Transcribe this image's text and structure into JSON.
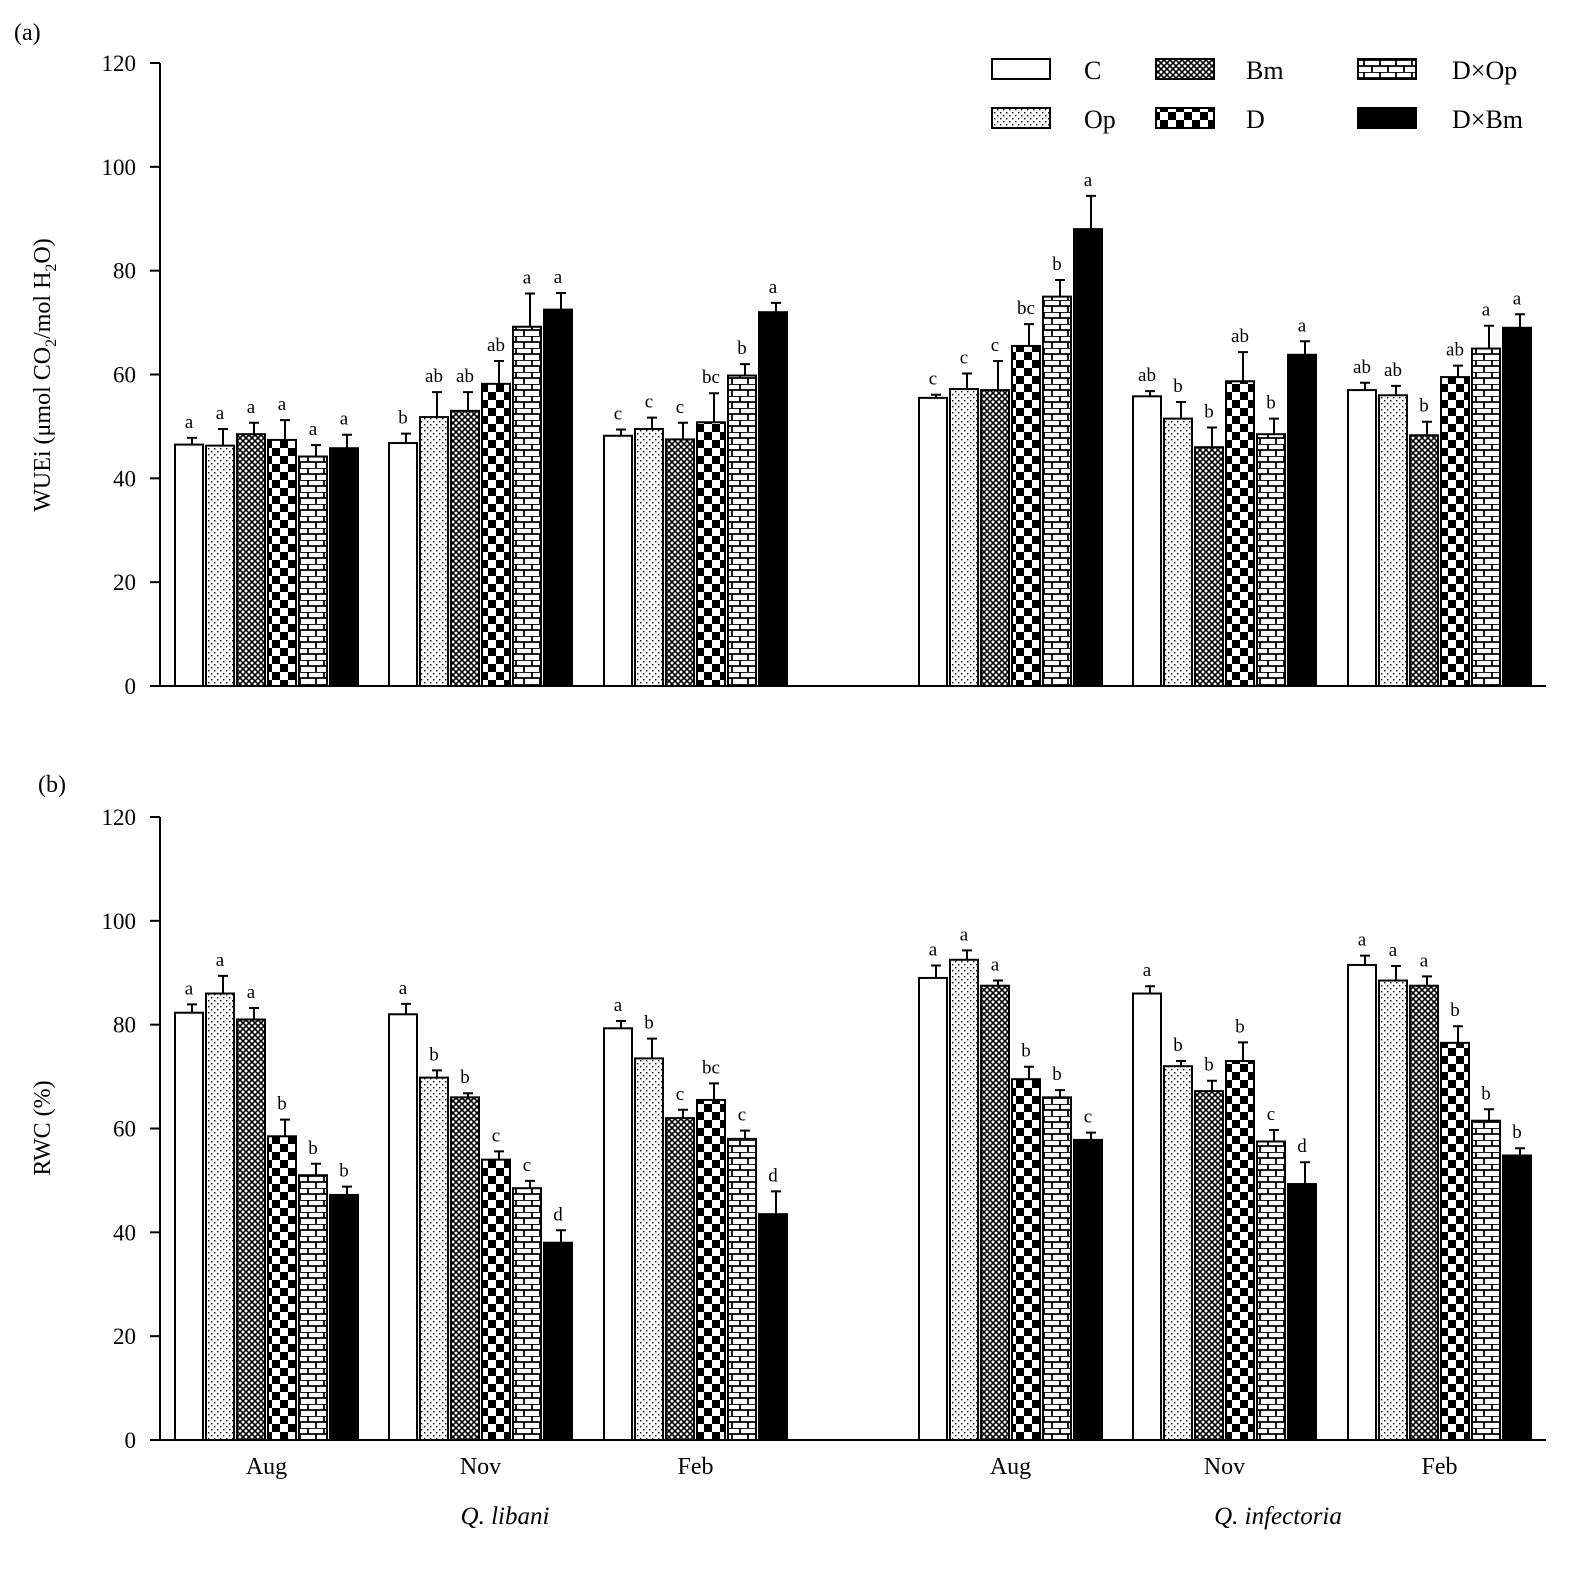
{
  "legend": [
    {
      "label": "C",
      "pattern": "white"
    },
    {
      "label": "Op",
      "pattern": "dots"
    },
    {
      "label": "Bm",
      "pattern": "cross"
    },
    {
      "label": "D",
      "pattern": "checker"
    },
    {
      "label": "D×Op",
      "pattern": "brick"
    },
    {
      "label": "D×Bm",
      "pattern": "black"
    }
  ],
  "chart_data": [
    {
      "panel": "(a)",
      "type": "bar",
      "ylabel": "WUEi (μmol CO2/mol H2O)",
      "ylim": [
        0,
        120
      ],
      "yticks": [
        0,
        20,
        40,
        60,
        80,
        100,
        120
      ],
      "categories": [
        "Aug",
        "Nov",
        "Feb",
        "Aug",
        "Nov",
        "Feb"
      ],
      "groups": [
        "Q. libani",
        "Q. infectoria"
      ],
      "series": [
        {
          "name": "C",
          "values": [
            46.5,
            46.8,
            48.2,
            55.5,
            55.8,
            57.0
          ],
          "errors": [
            1.3,
            1.8,
            1.2,
            0.6,
            1.0,
            1.4
          ],
          "letters": [
            "a",
            "b",
            "c",
            "c",
            "ab",
            "ab"
          ]
        },
        {
          "name": "Op",
          "values": [
            46.3,
            51.8,
            49.5,
            57.2,
            51.5,
            56.0
          ],
          "errors": [
            3.2,
            4.8,
            2.2,
            3.0,
            3.2,
            1.8
          ],
          "letters": [
            "a",
            "ab",
            "c",
            "c",
            "b",
            "ab"
          ]
        },
        {
          "name": "Bm",
          "values": [
            48.5,
            53.0,
            47.5,
            57.0,
            46.0,
            48.3
          ],
          "errors": [
            2.2,
            3.6,
            3.2,
            5.6,
            3.8,
            2.6
          ],
          "letters": [
            "a",
            "ab",
            "c",
            "c",
            "b",
            "b"
          ]
        },
        {
          "name": "D",
          "values": [
            47.4,
            58.2,
            50.8,
            65.5,
            58.7,
            59.5
          ],
          "errors": [
            3.8,
            4.4,
            5.6,
            4.2,
            5.6,
            2.2
          ],
          "letters": [
            "a",
            "ab",
            "bc",
            "bc",
            "ab",
            "ab"
          ]
        },
        {
          "name": "D×Op",
          "values": [
            44.2,
            69.2,
            59.8,
            75.0,
            48.5,
            65.0
          ],
          "errors": [
            2.2,
            6.4,
            2.2,
            3.2,
            3.0,
            4.4
          ],
          "letters": [
            "a",
            "a",
            "b",
            "b",
            "b",
            "a"
          ]
        },
        {
          "name": "D×Bm",
          "values": [
            45.8,
            72.5,
            72.0,
            88.0,
            63.8,
            69.0
          ],
          "errors": [
            2.6,
            3.2,
            1.8,
            6.4,
            2.6,
            2.6
          ],
          "letters": [
            "a",
            "a",
            "a",
            "a",
            "a",
            "a"
          ]
        }
      ]
    },
    {
      "panel": "(b)",
      "type": "bar",
      "ylabel": "RWC (%)",
      "ylim": [
        0,
        120
      ],
      "yticks": [
        0,
        20,
        40,
        60,
        80,
        100,
        120
      ],
      "categories": [
        "Aug",
        "Nov",
        "Feb",
        "Aug",
        "Nov",
        "Feb"
      ],
      "groups": [
        "Q. libani",
        "Q. infectoria"
      ],
      "series": [
        {
          "name": "C",
          "values": [
            82.3,
            82.0,
            79.3,
            89.0,
            86.0,
            91.5
          ],
          "errors": [
            1.6,
            2.0,
            1.4,
            2.4,
            1.4,
            1.8
          ],
          "letters": [
            "a",
            "a",
            "a",
            "a",
            "a",
            "a"
          ]
        },
        {
          "name": "Op",
          "values": [
            86.0,
            69.8,
            73.5,
            92.5,
            72.0,
            88.5
          ],
          "errors": [
            3.4,
            1.4,
            3.8,
            1.8,
            1.0,
            2.8
          ],
          "letters": [
            "a",
            "b",
            "b",
            "a",
            "b",
            "a"
          ]
        },
        {
          "name": "Bm",
          "values": [
            81.0,
            66.0,
            62.0,
            87.5,
            67.2,
            87.5
          ],
          "errors": [
            2.2,
            0.8,
            1.6,
            1.0,
            2.0,
            1.8
          ],
          "letters": [
            "a",
            "b",
            "c",
            "a",
            "b",
            "a"
          ]
        },
        {
          "name": "D",
          "values": [
            58.5,
            54.0,
            65.5,
            69.5,
            73.0,
            76.5
          ],
          "errors": [
            3.2,
            1.6,
            3.2,
            2.4,
            3.6,
            3.2
          ],
          "letters": [
            "b",
            "c",
            "bc",
            "b",
            "b",
            "b"
          ]
        },
        {
          "name": "D×Op",
          "values": [
            51.0,
            48.5,
            58.0,
            66.0,
            57.5,
            61.5
          ],
          "errors": [
            2.2,
            1.4,
            1.6,
            1.4,
            2.2,
            2.2
          ],
          "letters": [
            "b",
            "c",
            "c",
            "b",
            "c",
            "b"
          ]
        },
        {
          "name": "D×Bm",
          "values": [
            47.2,
            38.0,
            43.5,
            57.8,
            49.3,
            54.8
          ],
          "errors": [
            1.6,
            2.4,
            4.4,
            1.4,
            4.2,
            1.4
          ],
          "letters": [
            "b",
            "d",
            "d",
            "c",
            "d",
            "b"
          ]
        }
      ]
    }
  ]
}
